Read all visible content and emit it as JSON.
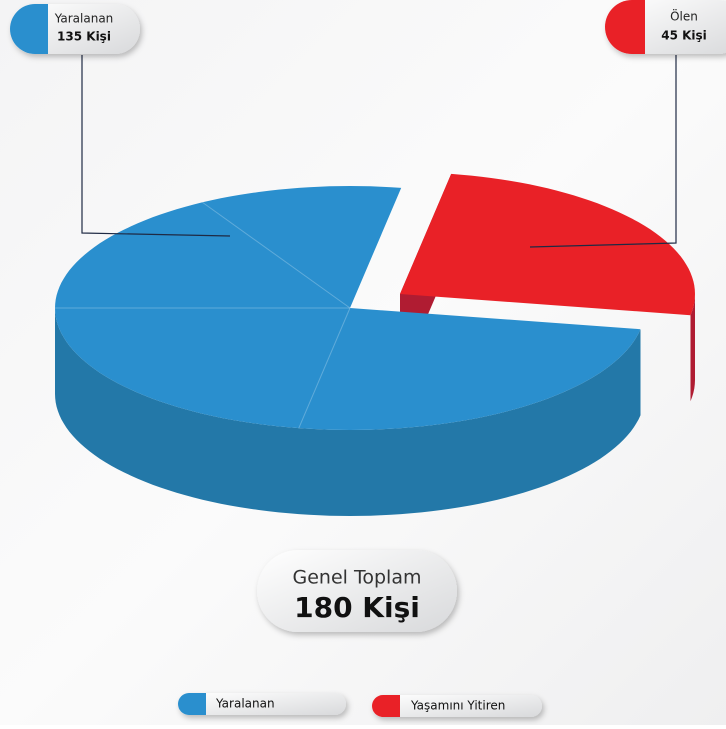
{
  "chart_data": {
    "type": "pie",
    "categories": [
      "Yaralanan",
      "Ölen"
    ],
    "values": [
      135,
      45
    ],
    "value_labels": [
      "135 Kişi",
      "45 Kişi"
    ],
    "colors": [
      "#2a8fce",
      "#e92127"
    ],
    "legend": [
      "Yaralanan",
      "Yaşamını Yitiren"
    ],
    "total_title": "Genel Toplam",
    "total_value": 180,
    "total_value_label": "180 Kişi"
  }
}
